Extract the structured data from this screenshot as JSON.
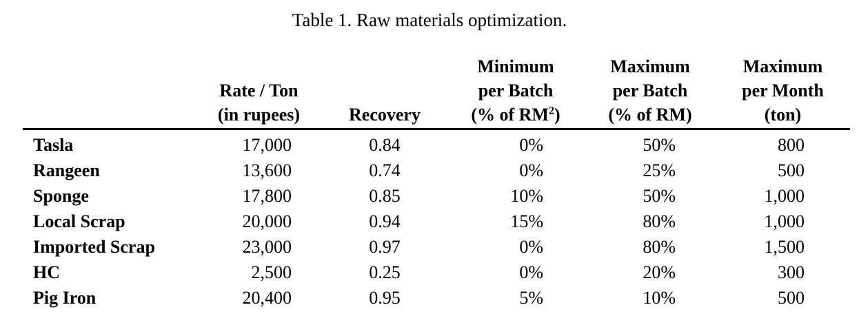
{
  "caption": "Table 1. Raw materials optimization.",
  "table": {
    "header": {
      "material": "",
      "rate_line1": "Rate / Ton",
      "rate_line2": "(in rupees)",
      "recovery": "Recovery",
      "min_line1": "Minimum",
      "min_line2": "per Batch",
      "min_line3_pre": "(% of RM",
      "min_line3_sup": "2",
      "min_line3_post": ")",
      "max_line1": "Maximum",
      "max_line2": "per Batch",
      "max_line3": "(% of RM)",
      "month_line1": "Maximum",
      "month_line2": "per Month",
      "month_line3": "(ton)"
    },
    "rows": [
      {
        "material": "Tasla",
        "rate": "17,000",
        "recovery": "0.84",
        "min": "0%",
        "max": "50%",
        "month": "800"
      },
      {
        "material": "Rangeen",
        "rate": "13,600",
        "recovery": "0.74",
        "min": "0%",
        "max": "25%",
        "month": "500"
      },
      {
        "material": "Sponge",
        "rate": "17,800",
        "recovery": "0.85",
        "min": "10%",
        "max": "50%",
        "month": "1,000"
      },
      {
        "material": "Local Scrap",
        "rate": "20,000",
        "recovery": "0.94",
        "min": "15%",
        "max": "80%",
        "month": "1,000"
      },
      {
        "material": "Imported Scrap",
        "rate": "23,000",
        "recovery": "0.97",
        "min": "0%",
        "max": "80%",
        "month": "1,500"
      },
      {
        "material": "HC",
        "rate": "2,500",
        "recovery": "0.25",
        "min": "0%",
        "max": "20%",
        "month": "300"
      },
      {
        "material": "Pig Iron",
        "rate": "20,400",
        "recovery": "0.95",
        "min": "5%",
        "max": "10%",
        "month": "500"
      }
    ]
  },
  "colors": {
    "text": "#000000",
    "background": "#ffffff",
    "header_rule": "#000000"
  }
}
